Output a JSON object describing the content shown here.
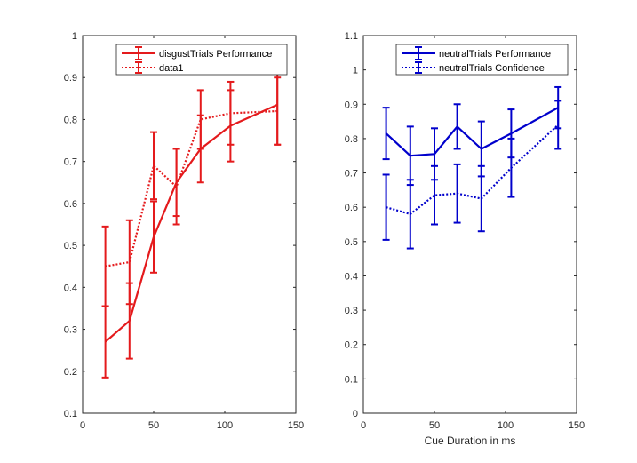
{
  "chart_data": [
    {
      "type": "line",
      "title": "",
      "xlabel": "",
      "ylabel": "",
      "xlim": [
        0,
        150
      ],
      "ylim": [
        0.1,
        1
      ],
      "xticks": [
        0,
        50,
        100,
        150
      ],
      "yticks": [
        0.1,
        0.2,
        0.3,
        0.4,
        0.5,
        0.6,
        0.7,
        0.8,
        0.9,
        1
      ],
      "xtick_labels": [
        "0",
        "50",
        "100",
        "150"
      ],
      "ytick_labels": [
        "0.1",
        "0.2",
        "0.3",
        "0.4",
        "0.5",
        "0.6",
        "0.7",
        "0.8",
        "0.9",
        "1"
      ],
      "grid": false,
      "legend_position": "top-right",
      "series": [
        {
          "name": "disgustTrials Performance",
          "style": "solid",
          "color": "#e41a1c",
          "x": [
            16,
            33,
            50,
            66,
            83,
            104,
            137
          ],
          "y": [
            0.27,
            0.32,
            0.52,
            0.65,
            0.73,
            0.785,
            0.835
          ],
          "err": [
            0.085,
            0.09,
            0.085,
            0.08,
            0.08,
            0.085,
            0.095
          ]
        },
        {
          "name": "data1",
          "style": "dotted",
          "color": "#e41a1c",
          "x": [
            16,
            33,
            50,
            66,
            83,
            104,
            137
          ],
          "y": [
            0.45,
            0.46,
            0.69,
            0.64,
            0.8,
            0.815,
            0.82
          ],
          "err": [
            0.095,
            0.1,
            0.08,
            0.09,
            0.07,
            0.075,
            0.08
          ]
        }
      ]
    },
    {
      "type": "line",
      "title": "",
      "xlabel": "Cue Duration in ms",
      "ylabel": "",
      "xlim": [
        0,
        150
      ],
      "ylim": [
        0,
        1.1
      ],
      "xticks": [
        0,
        50,
        100,
        150
      ],
      "yticks": [
        0,
        0.1,
        0.2,
        0.3,
        0.4,
        0.5,
        0.6,
        0.7,
        0.8,
        0.9,
        1,
        1.1
      ],
      "xtick_labels": [
        "0",
        "50",
        "100",
        "150"
      ],
      "ytick_labels": [
        "0",
        "0.1",
        "0.2",
        "0.3",
        "0.4",
        "0.5",
        "0.6",
        "0.7",
        "0.8",
        "0.9",
        "1",
        "1.1"
      ],
      "grid": false,
      "legend_position": "top-right",
      "series": [
        {
          "name": "neutralTrials Performance",
          "style": "solid",
          "color": "#0000cc",
          "x": [
            16,
            33,
            50,
            66,
            83,
            104,
            137
          ],
          "y": [
            0.815,
            0.75,
            0.755,
            0.835,
            0.77,
            0.815,
            0.89
          ],
          "err": [
            0.075,
            0.085,
            0.075,
            0.065,
            0.08,
            0.07,
            0.06
          ]
        },
        {
          "name": "neutralTrials Confidence",
          "style": "dotted",
          "color": "#0000cc",
          "x": [
            16,
            33,
            50,
            66,
            83,
            104,
            137
          ],
          "y": [
            0.6,
            0.58,
            0.635,
            0.64,
            0.625,
            0.715,
            0.84
          ],
          "err": [
            0.095,
            0.1,
            0.085,
            0.085,
            0.095,
            0.085,
            0.07
          ]
        }
      ]
    }
  ]
}
